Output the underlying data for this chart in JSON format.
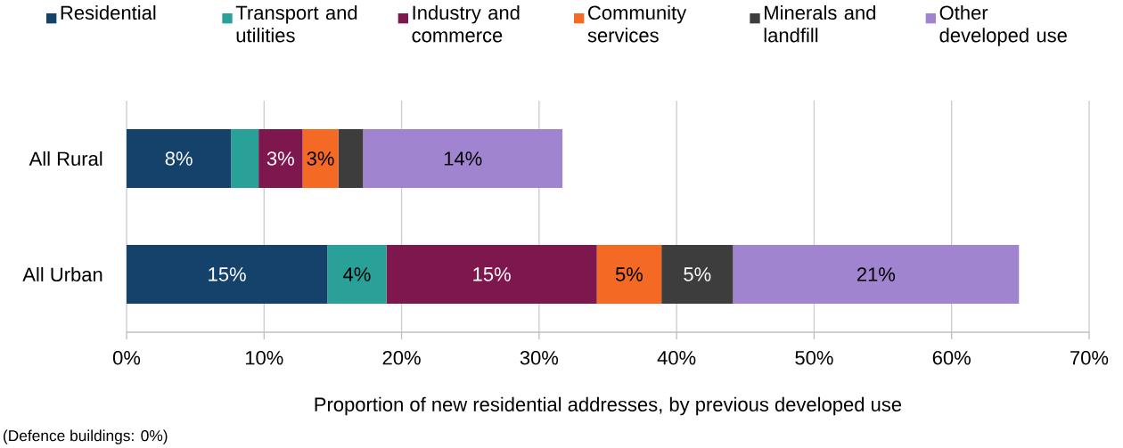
{
  "chart_data": {
    "type": "bar",
    "orientation": "horizontal",
    "stacked": true,
    "categories": [
      "All Rural",
      "All Urban"
    ],
    "series": [
      {
        "name": "Residential",
        "color": "#14426b",
        "values": [
          7.6,
          14.6
        ],
        "value_labels": [
          "8%",
          "15%"
        ]
      },
      {
        "name": "Transport and utilities",
        "color": "#2aa198",
        "values": [
          2.0,
          4.3
        ],
        "value_labels": [
          null,
          "4%"
        ]
      },
      {
        "name": "Industry and commerce",
        "color": "#7e174d",
        "values": [
          3.2,
          15.3
        ],
        "value_labels": [
          "3%",
          "15%"
        ]
      },
      {
        "name": "Community services",
        "color": "#f46a25",
        "values": [
          2.6,
          4.7
        ],
        "value_labels": [
          "3%",
          "5%"
        ]
      },
      {
        "name": "Minerals and landfill",
        "color": "#3d3d3d",
        "values": [
          1.8,
          5.2
        ],
        "value_labels": [
          null,
          "5%"
        ]
      },
      {
        "name": "Other developed use",
        "color": "#a084cf",
        "values": [
          14.5,
          20.8
        ],
        "value_labels": [
          "14%",
          "21%"
        ]
      }
    ],
    "xlim": [
      0,
      70
    ],
    "xticks": [
      {
        "value": 0,
        "label": "0%"
      },
      {
        "value": 10,
        "label": "10%"
      },
      {
        "value": 20,
        "label": "20%"
      },
      {
        "value": 30,
        "label": "30%"
      },
      {
        "value": 40,
        "label": "40%"
      },
      {
        "value": 50,
        "label": "50%"
      },
      {
        "value": 60,
        "label": "60%"
      },
      {
        "value": 70,
        "label": "70%"
      }
    ],
    "xlabel": "Proportion of new residential addresses, by previous developed use",
    "grid": "x",
    "legend": "top",
    "annotations": [
      "(Defence buildings:  0%)"
    ]
  }
}
